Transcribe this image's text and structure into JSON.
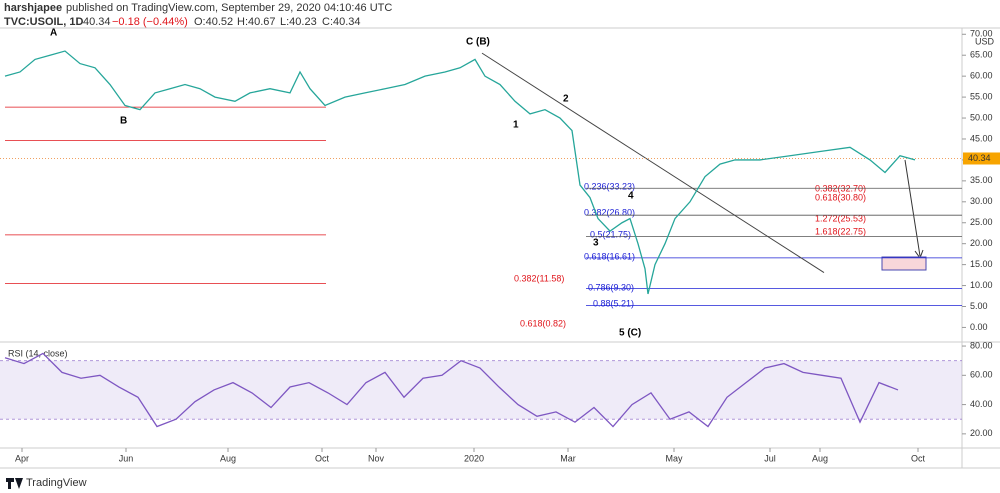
{
  "header": {
    "author": "harshjapee",
    "published": "published on TradingView.com, September 29, 2020 04:10:46 UTC",
    "symbol": "TVC:USOIL, 1D",
    "last": "40.34",
    "change": "−0.18 (−0.44%)",
    "ohlc": [
      "O:40.52",
      "H:40.67",
      "L:40.23",
      "C:40.34"
    ]
  },
  "annotations": {
    "waves": [
      "A",
      "B",
      "C (B)",
      "1",
      "2",
      "3",
      "4",
      "5 (C)"
    ],
    "fib_blue": [
      "0.236(33.23)",
      "0.382(26.80)",
      "0.5(21.75)",
      "0.618(16.61)",
      "0.786(9.30)",
      "0.88(5.21)"
    ],
    "fib_red": [
      "0.382(32.70)",
      "0.618(30.80)",
      "1.272(25.53)",
      "1.618(22.75)",
      "0.382(11.58)",
      "0.618(0.82)"
    ]
  },
  "footer": "TradingView",
  "chart_data": [
    {
      "type": "line",
      "y_unit": "USD",
      "x": [
        2.5,
        10,
        17.5,
        25,
        32.5,
        40,
        47.5,
        55,
        62.5,
        70,
        77.5,
        85,
        92.5,
        100,
        107.5,
        117.5,
        125,
        135,
        145,
        150,
        155,
        162.5,
        172.5,
        182.5,
        192.5,
        202.5,
        212.5,
        222.5,
        230,
        237.5,
        242.5,
        250,
        257.5,
        265,
        272.5,
        280,
        286,
        290,
        295,
        299,
        305,
        311,
        315,
        319,
        322.5,
        324,
        327.5,
        332.5,
        337.5,
        345,
        352.5,
        360,
        367.5,
        380,
        395,
        410,
        425,
        435,
        442.5,
        450,
        457.5
      ],
      "series": [
        {
          "color": "#26a69a",
          "values": [
            60,
            61,
            64,
            65,
            66,
            63,
            62,
            58,
            53,
            52,
            56,
            57,
            58,
            57,
            55,
            54,
            56,
            57,
            56,
            61,
            57,
            53,
            55,
            56,
            57,
            58,
            60,
            61,
            62,
            64,
            60,
            58,
            54,
            51,
            52,
            50,
            47,
            34,
            31,
            26,
            23,
            25,
            26,
            20,
            14,
            8,
            15,
            20,
            26,
            30,
            36,
            39,
            40,
            40,
            41,
            42,
            43,
            40,
            37,
            41,
            40
          ]
        }
      ],
      "xlim": [
        0,
        481
      ],
      "ylim": [
        -3,
        71.5
      ],
      "yticks": [
        {
          "value": 0,
          "label": "0.00"
        },
        {
          "value": 5,
          "label": "5.00"
        },
        {
          "value": 10,
          "label": "10.00"
        },
        {
          "value": 15,
          "label": "15.00"
        },
        {
          "value": 20,
          "label": "20.00"
        },
        {
          "value": 25,
          "label": "25.00"
        },
        {
          "value": 30,
          "label": "30.00"
        },
        {
          "value": 35,
          "label": "35.00"
        },
        {
          "value": 40,
          "label": "40.00"
        },
        {
          "value": 45,
          "label": "45.00"
        },
        {
          "value": 50,
          "label": "50.00"
        },
        {
          "value": 55,
          "label": "55.00"
        },
        {
          "value": 60,
          "label": "60.00"
        },
        {
          "value": 65,
          "label": "65.00"
        },
        {
          "value": 70,
          "label": "70.00"
        }
      ],
      "last_price": {
        "value": 40.34,
        "label": "40.34"
      },
      "fib_levels": [
        33.23,
        26.8,
        21.75,
        16.61,
        9.3,
        5.21
      ],
      "support_lines": [
        52.6,
        44.6,
        22.1,
        10.5
      ],
      "trendline": {
        "x": [
          241,
          412
        ],
        "values": [
          65.5,
          13.1
        ]
      },
      "grid": false
    },
    {
      "type": "line",
      "title": "RSI (14, close)",
      "x": [
        2.5,
        12,
        21.5,
        31,
        40.5,
        50,
        59.5,
        69,
        78.5,
        88,
        97.5,
        107,
        116.5,
        126,
        135.5,
        145,
        154.5,
        164,
        173.5,
        183,
        192.5,
        202,
        211.5,
        221,
        230.5,
        240,
        249.5,
        259,
        268.5,
        278,
        287.5,
        297,
        306.5,
        316,
        325.5,
        335,
        344.5,
        354,
        363.5,
        373,
        382.5,
        392,
        401.5,
        411,
        420.5,
        430,
        439.5,
        449
      ],
      "series": [
        {
          "color": "#7e57c2",
          "values": [
            72,
            68,
            75,
            62,
            58,
            60,
            52,
            45,
            25,
            30,
            42,
            50,
            55,
            48,
            38,
            52,
            55,
            48,
            40,
            55,
            62,
            45,
            58,
            60,
            70,
            65,
            52,
            40,
            32,
            35,
            28,
            38,
            25,
            40,
            48,
            30,
            35,
            25,
            45,
            55,
            65,
            68,
            62,
            60,
            58,
            28,
            55,
            50
          ]
        }
      ],
      "xlim": [
        0,
        481
      ],
      "ylim": [
        11.7,
        81.4
      ],
      "yticks": [
        {
          "value": 20,
          "label": "20.00"
        },
        {
          "value": 40,
          "label": "40.00"
        },
        {
          "value": 60,
          "label": "60.00"
        },
        {
          "value": 80,
          "label": "80.00"
        }
      ],
      "band": [
        30,
        70
      ],
      "xticks": [
        {
          "value": 11,
          "label": "Apr"
        },
        {
          "value": 63,
          "label": "Jun"
        },
        {
          "value": 114,
          "label": "Aug"
        },
        {
          "value": 161,
          "label": "Oct"
        },
        {
          "value": 188,
          "label": "Nov"
        },
        {
          "value": 237,
          "label": "2020"
        },
        {
          "value": 284,
          "label": "Mar"
        },
        {
          "value": 337,
          "label": "May"
        },
        {
          "value": 385,
          "label": "Jul"
        },
        {
          "value": 410,
          "label": "Aug"
        },
        {
          "value": 459,
          "label": "Oct"
        }
      ],
      "grid": false
    }
  ]
}
